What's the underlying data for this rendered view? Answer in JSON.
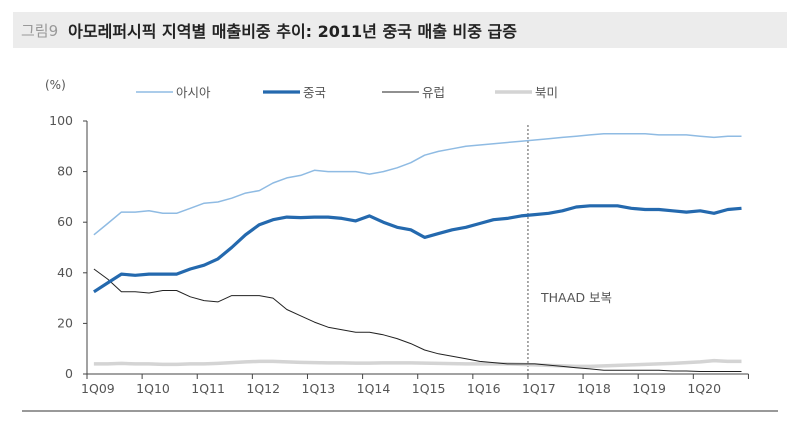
{
  "header": {
    "figure_label": "그림9",
    "title": "아모레퍼시픽 지역별 매출비중 추이: 2011년 중국 매출 비중 급증"
  },
  "chart_data": {
    "type": "line",
    "title": "아모레퍼시픽 지역별 매출비중 추이: 2011년 중국 매출 비중 급증",
    "ylabel": "(%)",
    "ylim": [
      0,
      100
    ],
    "yticks": [
      0,
      20,
      40,
      60,
      80,
      100
    ],
    "xtick_labels": [
      "1Q09",
      "1Q10",
      "1Q11",
      "1Q12",
      "1Q13",
      "1Q14",
      "1Q15",
      "1Q16",
      "1Q17",
      "1Q18",
      "1Q19",
      "1Q20"
    ],
    "x_start": "1Q09",
    "x_end": "4Q20",
    "legend_position": "top",
    "grid": false,
    "annotation": {
      "text": "THAAD 보복",
      "at": "1Q17",
      "style": "dashed vertical line"
    },
    "series": [
      {
        "name": "아시아",
        "color": "#8fbbe3",
        "values": [
          55,
          59.5,
          64,
          64,
          64.5,
          63.5,
          63.5,
          65.5,
          67.5,
          68,
          69.5,
          71.5,
          72.5,
          75.5,
          77.5,
          78.5,
          80.5,
          80,
          80,
          80,
          79,
          80,
          81.5,
          83.5,
          86.5,
          88,
          89,
          90,
          90.5,
          91,
          91.5,
          92,
          92.5,
          93,
          93.5,
          94,
          94.5,
          95,
          95,
          95,
          95,
          94.5,
          94.5,
          94.5,
          94,
          93.5,
          94,
          94
        ]
      },
      {
        "name": "중국",
        "color": "#2469ae",
        "values": [
          32.5,
          36,
          39.5,
          39,
          39.5,
          39.5,
          39.5,
          41.5,
          43,
          45.5,
          50,
          55,
          59,
          61,
          62,
          61.8,
          62,
          62,
          61.5,
          60.5,
          62.5,
          60,
          58,
          57,
          54,
          55.5,
          57,
          58,
          59.5,
          61,
          61.5,
          62.5,
          63,
          63.5,
          64.5,
          66,
          66.5,
          66.5,
          66.5,
          65.5,
          65,
          65,
          64.5,
          64,
          64.5,
          63.5,
          65,
          65.5
        ]
      },
      {
        "name": "유럽",
        "color": "#222222",
        "values": [
          41.5,
          37.5,
          32.5,
          32.5,
          32,
          33,
          33,
          30.5,
          29,
          28.5,
          31,
          31,
          31,
          30,
          25.5,
          23,
          20.5,
          18.5,
          17.5,
          16.5,
          16.5,
          15.5,
          14,
          12,
          9.5,
          8,
          7,
          6,
          5,
          4.5,
          4,
          4,
          4,
          3.5,
          3,
          2.5,
          2,
          1.5,
          1.5,
          1.5,
          1.5,
          1.5,
          1.2,
          1.2,
          1,
          1,
          1,
          1
        ]
      },
      {
        "name": "북미",
        "color": "#d4d4d4",
        "values": [
          4,
          4,
          4.2,
          4,
          4,
          3.8,
          3.8,
          4,
          4,
          4.2,
          4.5,
          4.8,
          5,
          5,
          4.8,
          4.6,
          4.5,
          4.4,
          4.4,
          4.3,
          4.3,
          4.4,
          4.4,
          4.4,
          4.3,
          4.2,
          4.1,
          4,
          4,
          4,
          4,
          3.8,
          3.6,
          3.4,
          3.2,
          3,
          3,
          3.2,
          3.4,
          3.6,
          3.8,
          4,
          4.2,
          4.5,
          4.8,
          5.3,
          5,
          5
        ]
      }
    ]
  }
}
